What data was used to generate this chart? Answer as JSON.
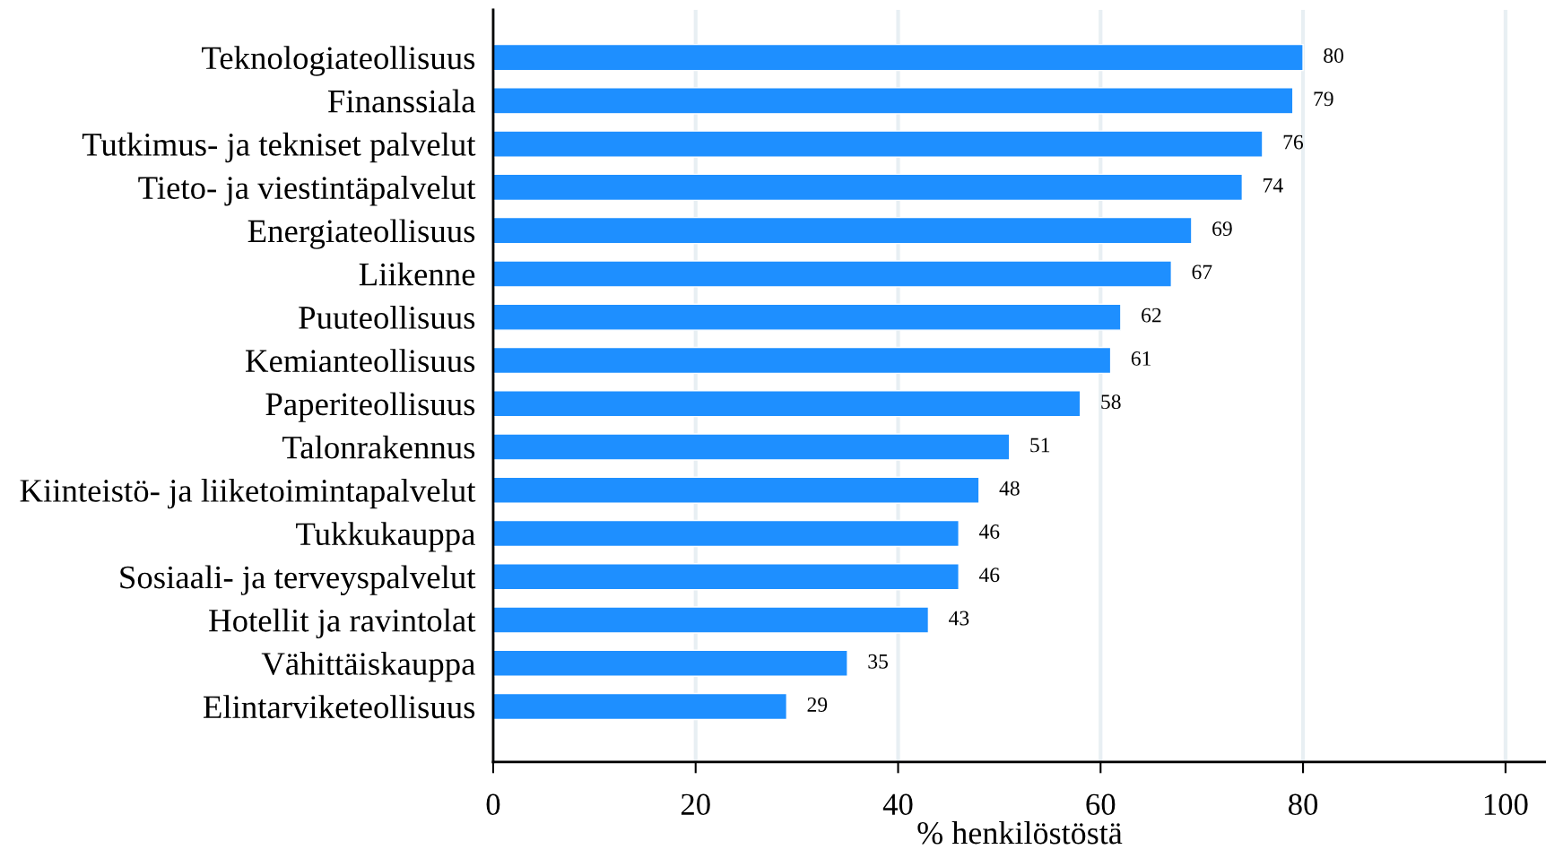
{
  "chart_data": {
    "type": "bar",
    "orientation": "horizontal",
    "categories": [
      "Teknologiateollisuus",
      "Finanssiala",
      "Tutkimus- ja tekniset palvelut",
      "Tieto- ja viestintäpalvelut",
      "Energiateollisuus",
      "Liikenne",
      "Puuteollisuus",
      "Kemianteollisuus",
      "Paperiteollisuus",
      "Talonrakennus",
      "Kiinteistö- ja liiketoimintapalvelut",
      "Tukkukauppa",
      "Sosiaali- ja terveyspalvelut",
      "Hotellit ja ravintolat",
      "Vähittäiskauppa",
      "Elintarviketeollisuus"
    ],
    "values": [
      80,
      79,
      76,
      74,
      69,
      67,
      62,
      61,
      58,
      51,
      48,
      46,
      46,
      43,
      35,
      29
    ],
    "color": "#1e8fff",
    "xlabel": "% henkilöstöstä",
    "xlim": [
      0,
      104
    ],
    "xticks": [
      0,
      20,
      40,
      60,
      80,
      100
    ],
    "grid": "x",
    "data_labels": true
  }
}
